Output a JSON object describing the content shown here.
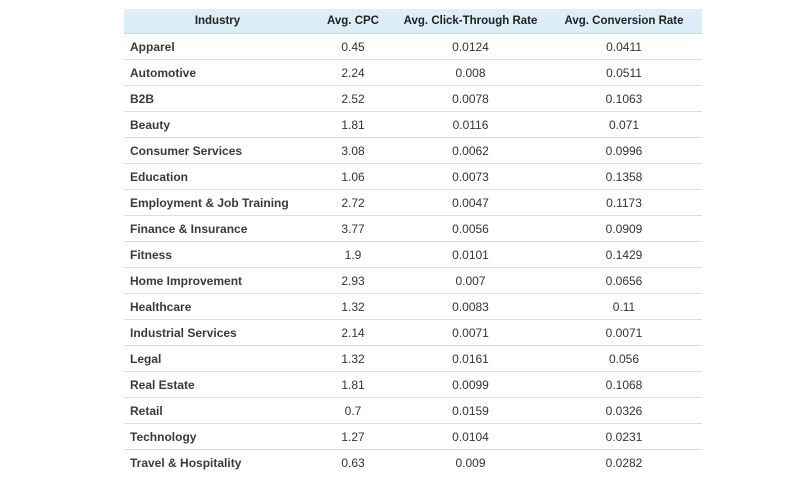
{
  "table": {
    "headers": {
      "industry": "Industry",
      "cpc": "Avg. CPC",
      "ctr": "Avg. Click-Through Rate",
      "conversion": "Avg. Conversion Rate"
    },
    "rows": [
      {
        "industry": "Apparel",
        "cpc": "0.45",
        "ctr": "0.0124",
        "conversion": "0.0411"
      },
      {
        "industry": "Automotive",
        "cpc": "2.24",
        "ctr": "0.008",
        "conversion": "0.0511"
      },
      {
        "industry": "B2B",
        "cpc": "2.52",
        "ctr": "0.0078",
        "conversion": "0.1063"
      },
      {
        "industry": "Beauty",
        "cpc": "1.81",
        "ctr": "0.0116",
        "conversion": "0.071"
      },
      {
        "industry": "Consumer Services",
        "cpc": "3.08",
        "ctr": "0.0062",
        "conversion": "0.0996"
      },
      {
        "industry": "Education",
        "cpc": "1.06",
        "ctr": "0.0073",
        "conversion": "0.1358"
      },
      {
        "industry": "Employment & Job Training",
        "cpc": "2.72",
        "ctr": "0.0047",
        "conversion": "0.1173"
      },
      {
        "industry": "Finance & Insurance",
        "cpc": "3.77",
        "ctr": "0.0056",
        "conversion": "0.0909"
      },
      {
        "industry": "Fitness",
        "cpc": "1.9",
        "ctr": "0.0101",
        "conversion": "0.1429"
      },
      {
        "industry": "Home Improvement",
        "cpc": "2.93",
        "ctr": "0.007",
        "conversion": "0.0656"
      },
      {
        "industry": "Healthcare",
        "cpc": "1.32",
        "ctr": "0.0083",
        "conversion": "0.11"
      },
      {
        "industry": "Industrial Services",
        "cpc": "2.14",
        "ctr": "0.0071",
        "conversion": "0.0071"
      },
      {
        "industry": "Legal",
        "cpc": "1.32",
        "ctr": "0.0161",
        "conversion": "0.056"
      },
      {
        "industry": "Real Estate",
        "cpc": "1.81",
        "ctr": "0.0099",
        "conversion": "0.1068"
      },
      {
        "industry": "Retail",
        "cpc": "0.7",
        "ctr": "0.0159",
        "conversion": "0.0326"
      },
      {
        "industry": "Technology",
        "cpc": "1.27",
        "ctr": "0.0104",
        "conversion": "0.0231"
      },
      {
        "industry": "Travel & Hospitality",
        "cpc": "0.63",
        "ctr": "0.009",
        "conversion": "0.0282"
      }
    ]
  },
  "colors": {
    "header_bg": "#dceef8",
    "row_divider": "#dddddd",
    "text": "#333333"
  }
}
